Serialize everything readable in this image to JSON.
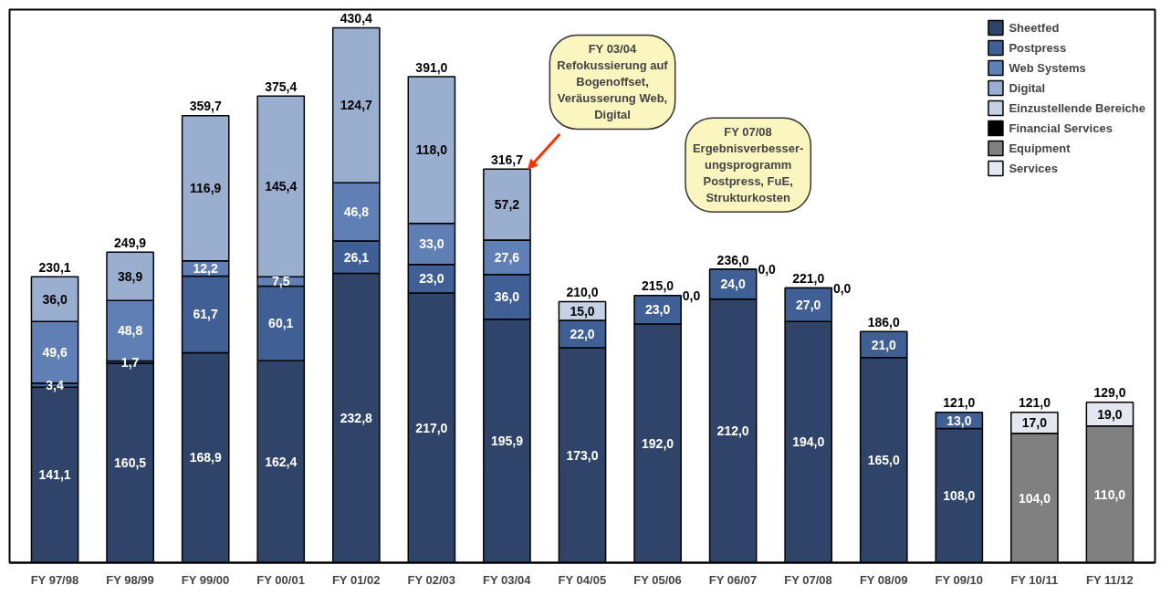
{
  "chart_data": {
    "type": "bar",
    "stacked": true,
    "categories": [
      "FY 97/98",
      "FY 98/99",
      "FY 99/00",
      "FY 00/01",
      "FY 01/02",
      "FY 02/03",
      "FY 03/04",
      "FY 04/05",
      "FY 05/06",
      "FY 06/07",
      "FY 07/08",
      "FY 08/09",
      "FY 09/10",
      "FY 10/11",
      "FY 11/12"
    ],
    "series": [
      {
        "name": "Sheetfed",
        "color": "#2f4468",
        "values": [
          141.1,
          160.5,
          168.9,
          162.4,
          232.8,
          217.0,
          195.9,
          173.0,
          192.0,
          212.0,
          194.0,
          165.0,
          108.0,
          null,
          null
        ],
        "value_labels": [
          "141,1",
          "160,5",
          "168,9",
          "162,4",
          "232,8",
          "217,0",
          "195,9",
          "173,0",
          "192,0",
          "212,0",
          "194,0",
          "165,0",
          "108,0",
          null,
          null
        ]
      },
      {
        "name": "Postpress",
        "color": "#3f5f95",
        "values": [
          3.4,
          1.7,
          61.7,
          60.1,
          26.1,
          23.0,
          36.0,
          22.0,
          23.0,
          24.0,
          27.0,
          21.0,
          13.0,
          null,
          null
        ],
        "value_labels": [
          "3,4",
          "1,7",
          "61,7",
          "60,1",
          "26,1",
          "23,0",
          "36,0",
          "22,0",
          "23,0",
          "24,0",
          "27,0",
          "21,0",
          "13,0",
          null,
          null
        ]
      },
      {
        "name": "Web Systems",
        "color": "#5f7fb5",
        "values": [
          49.6,
          48.8,
          12.2,
          7.5,
          46.8,
          33.0,
          27.6,
          null,
          null,
          null,
          null,
          null,
          null,
          null,
          null
        ],
        "value_labels": [
          "49,6",
          "48,8",
          "12,2",
          "7,5",
          "46,8",
          "33,0",
          "27,6",
          null,
          null,
          null,
          null,
          null,
          null,
          null,
          null
        ]
      },
      {
        "name": "Digital",
        "color": "#9aaed0",
        "values": [
          36.0,
          38.9,
          116.9,
          145.4,
          124.7,
          118.0,
          57.2,
          null,
          null,
          null,
          null,
          null,
          null,
          null,
          null
        ],
        "value_labels": [
          "36,0",
          "38,9",
          "116,9",
          "145,4",
          "124,7",
          "118,0",
          "57,2",
          null,
          null,
          null,
          null,
          null,
          null,
          null,
          null
        ]
      },
      {
        "name": "Einzustellende Bereiche",
        "color": "#c5d0e3",
        "values": [
          null,
          null,
          null,
          null,
          null,
          null,
          null,
          15.0,
          null,
          null,
          null,
          null,
          null,
          null,
          null
        ],
        "value_labels": [
          null,
          null,
          null,
          null,
          null,
          null,
          null,
          "15,0",
          null,
          null,
          null,
          null,
          null,
          null,
          null
        ]
      },
      {
        "name": "Financial Services",
        "color": "#000000",
        "values": [
          null,
          null,
          null,
          null,
          null,
          null,
          null,
          null,
          0.0,
          0.0,
          0.0,
          null,
          null,
          null,
          null
        ],
        "value_labels": [
          null,
          null,
          null,
          null,
          null,
          null,
          null,
          null,
          "0,0",
          "0,0",
          "0,0",
          null,
          null,
          null,
          null
        ]
      },
      {
        "name": "Equipment",
        "color": "#808080",
        "values": [
          null,
          null,
          null,
          null,
          null,
          null,
          null,
          null,
          null,
          null,
          null,
          null,
          null,
          104.0,
          110.0
        ],
        "value_labels": [
          null,
          null,
          null,
          null,
          null,
          null,
          null,
          null,
          null,
          null,
          null,
          null,
          null,
          "104,0",
          "110,0"
        ]
      },
      {
        "name": "Services",
        "color": "#e3e7ef",
        "values": [
          null,
          null,
          null,
          null,
          null,
          null,
          null,
          null,
          null,
          null,
          null,
          null,
          null,
          17.0,
          19.0
        ],
        "value_labels": [
          null,
          null,
          null,
          null,
          null,
          null,
          null,
          null,
          null,
          null,
          null,
          null,
          null,
          "17,0",
          "19,0"
        ]
      }
    ],
    "totals": [
      "230,1",
      "249,9",
      "359,7",
      "375,4",
      "430,4",
      "391,0",
      "316,7",
      "210,0",
      "215,0",
      "236,0",
      "221,0",
      "186,0",
      "121,0",
      "121,0",
      "129,0"
    ],
    "ylim": [
      0,
      445
    ],
    "annotations": [
      "FY 03/04\nRefokussierung auf\nBogenoffset,\nVeräusserung Web,\nDigital",
      "FY 07/08\nErgebnisverbesser-\nungsprogramm\nPostpress, FuE,\nStrukturkosten"
    ],
    "legend": "top right",
    "grid": false
  }
}
